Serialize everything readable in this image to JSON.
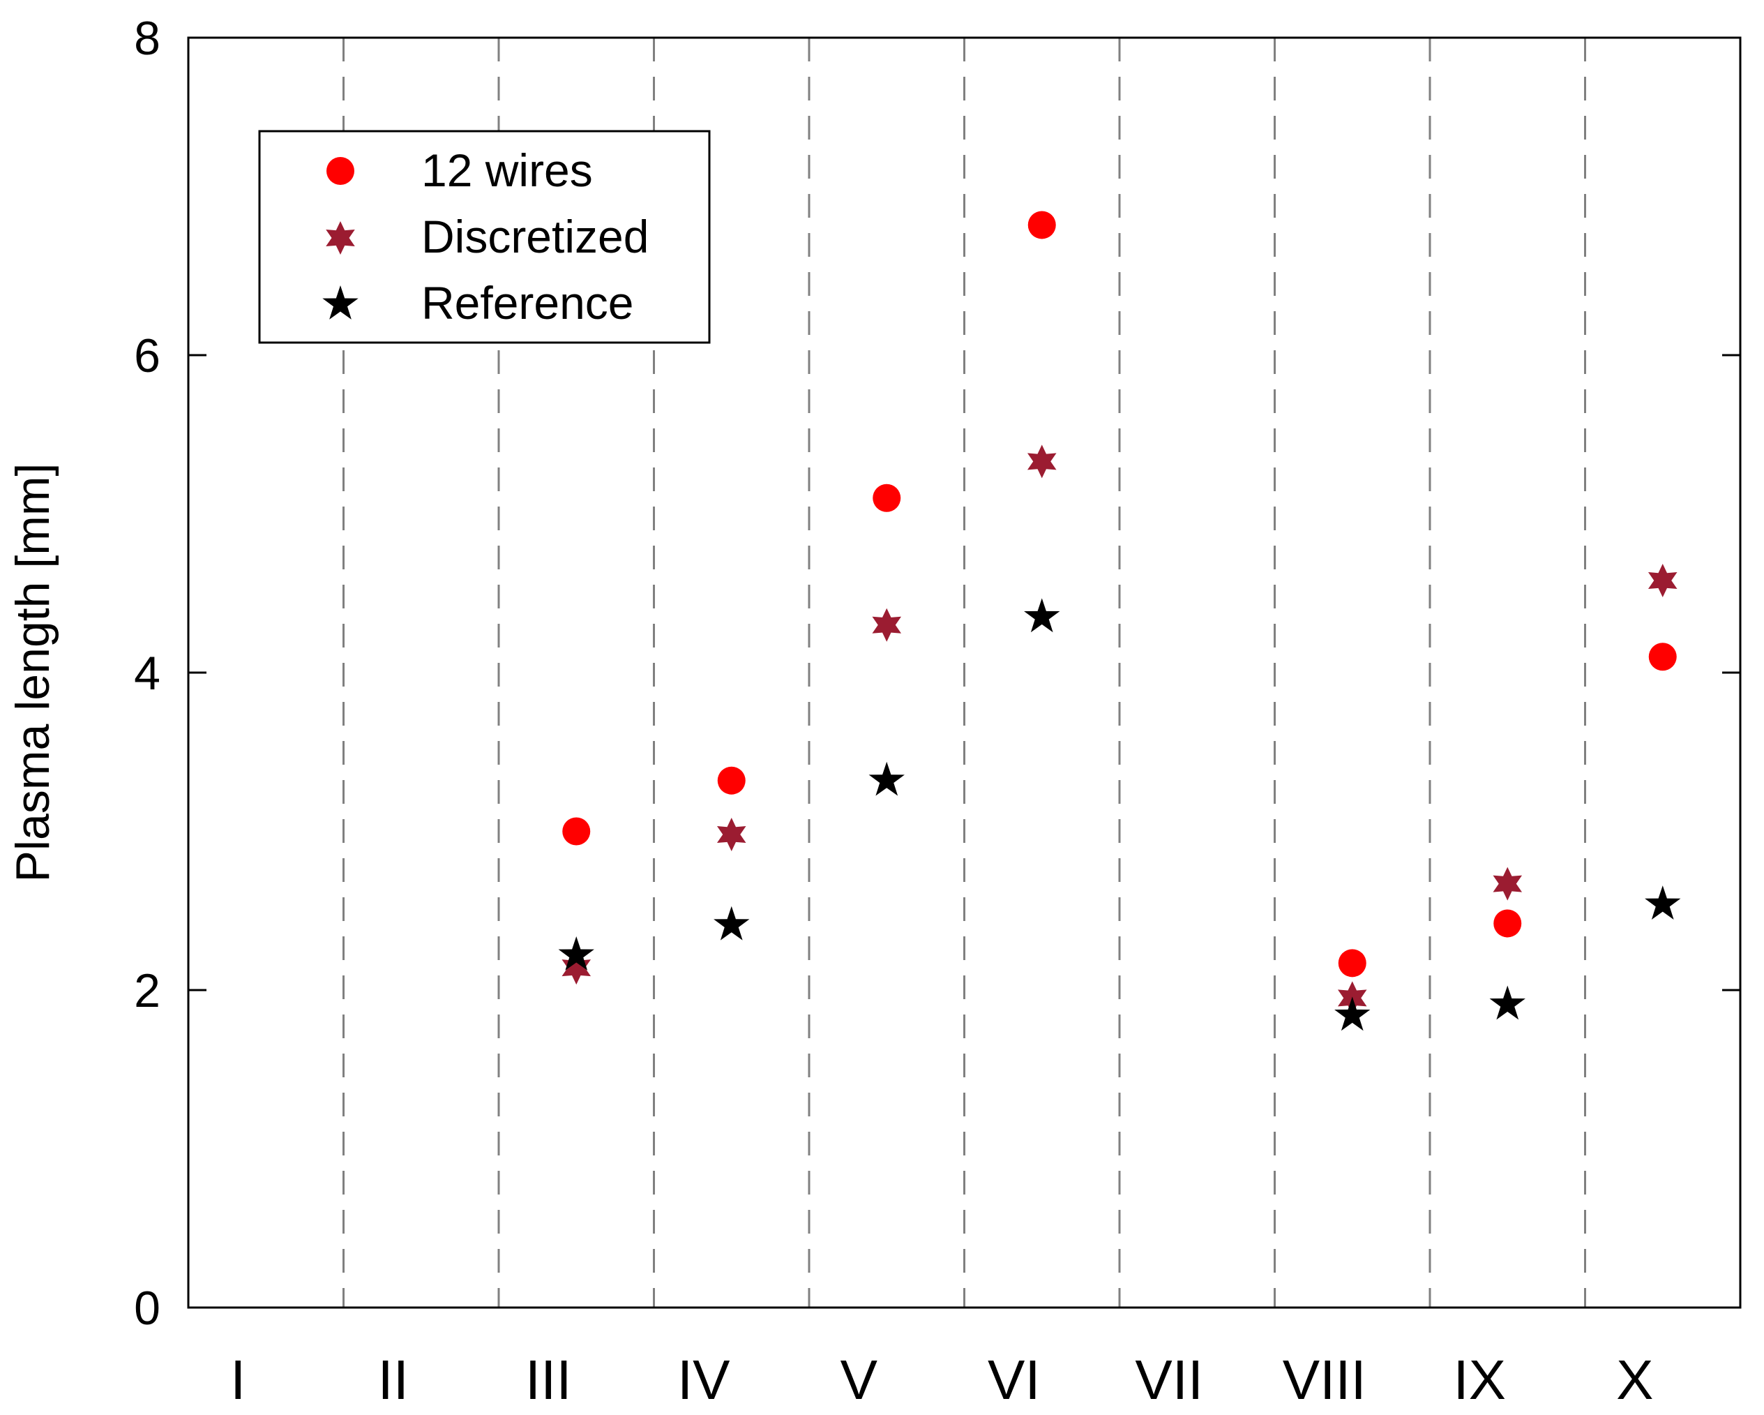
{
  "chart_data": {
    "type": "scatter",
    "title": "",
    "xlabel": "",
    "ylabel": "Plasma length [mm]",
    "categories": [
      "I",
      "II",
      "III",
      "IV",
      "V",
      "VI",
      "VII",
      "VIII",
      "IX",
      "X"
    ],
    "ylim": [
      0,
      8
    ],
    "yticks": [
      "0",
      "2",
      "4",
      "6",
      "8"
    ],
    "grid": "vertical dashed separators between categories",
    "legend_position": "top-left",
    "series": [
      {
        "name": "12 wires",
        "marker": "circle",
        "color": "#ff0000",
        "values": [
          null,
          null,
          3.0,
          3.32,
          5.1,
          6.82,
          null,
          2.17,
          2.42,
          4.1
        ]
      },
      {
        "name": "Discretized",
        "marker": "hexagram",
        "color": "#9b1c31",
        "values": [
          null,
          null,
          2.14,
          2.98,
          4.3,
          5.33,
          null,
          1.95,
          2.67,
          4.58
        ]
      },
      {
        "name": "Reference",
        "marker": "star",
        "color": "#000000",
        "values": [
          null,
          null,
          2.22,
          2.41,
          3.32,
          4.35,
          null,
          1.84,
          1.91,
          2.54
        ]
      }
    ]
  }
}
